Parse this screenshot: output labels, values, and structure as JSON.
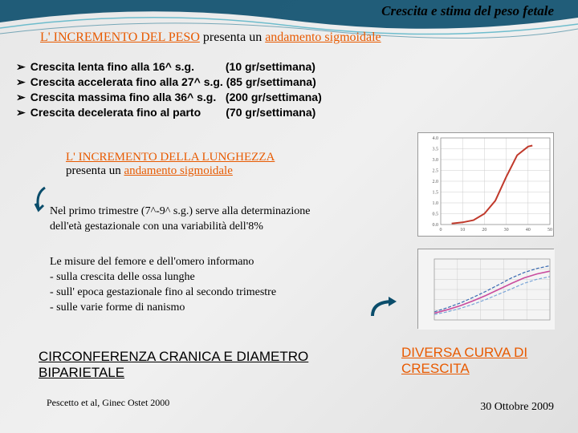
{
  "header": {
    "title": "Crescita e stima del peso fetale"
  },
  "subtitle": {
    "key": "L' INCREMENTO DEL PESO",
    "mid": " presenta un ",
    "orange": "andamento sigmoidale"
  },
  "bullets": [
    {
      "text": "Crescita lenta fino alla 16^ s.g.          (10 gr/settimana)"
    },
    {
      "text": "Crescita accelerata fino alla 27^ s.g. (85 gr/settimana)"
    },
    {
      "text": "Crescita massima fino alla 36^ s.g.   (200 gr/settimana)"
    },
    {
      "text": "Crescita decelerata fino al parto        (70 gr/settimana)"
    }
  ],
  "length_block": {
    "key": "L' INCREMENTO DELLA LUNGHEZZA",
    "line2a": "presenta un ",
    "line2b": "andamento sigmoidale"
  },
  "trimestre": {
    "line1": "Nel primo trimestre (7^-9^ s.g.) serve alla determinazione",
    "line2": "dell'età gestazionale con una variabilità dell'8%"
  },
  "misure": {
    "l1": "Le misure del femore e dell'omero informano",
    "l2": " - sulla crescita delle ossa lunghe",
    "l3": " - sull' epoca gestazionale  fino al secondo trimestre",
    "l4": " - sulle varie forme di nanismo"
  },
  "circ": {
    "l1": "CIRCONFERENZA CRANICA E DIAMETRO",
    "l2": "BIPARIETALE"
  },
  "ref": "Pescetto et al, Ginec Ostet 2000",
  "diversa": {
    "l1": "DIVERSA CURVA DI",
    "l2": "CRESCITA"
  },
  "date": "30 Ottobre 2009",
  "chart1": {
    "type": "line-sigmoid",
    "xlim": [
      0,
      50
    ],
    "ylim": [
      0,
      4
    ],
    "xtickstep": 10,
    "ytickstep": 0.5,
    "curve_color": "#c0392b",
    "curve_width": 2,
    "grid_color": "#cccccc",
    "bg": "#ffffff",
    "points_x": [
      5,
      10,
      15,
      20,
      25,
      30,
      35,
      40,
      42
    ],
    "points_y": [
      0.05,
      0.1,
      0.2,
      0.5,
      1.1,
      2.2,
      3.2,
      3.6,
      3.65
    ]
  },
  "chart2": {
    "type": "line-multi",
    "xlim": [
      15,
      40
    ],
    "ylim": [
      0,
      90
    ],
    "grid_color": "#cccccc",
    "bg": "#f4f4f4",
    "title_fontsize": 7,
    "series": [
      {
        "color": "#396ab1",
        "width": 1.2,
        "dash": "4 2",
        "y": [
          12,
          18,
          25,
          33,
          42,
          52,
          62,
          70,
          76,
          80
        ]
      },
      {
        "color": "#c94c9e",
        "width": 1.6,
        "dash": "none",
        "y": [
          10,
          15,
          21,
          28,
          36,
          45,
          54,
          62,
          68,
          72
        ]
      },
      {
        "color": "#7aa5d8",
        "width": 1.2,
        "dash": "4 2",
        "y": [
          8,
          12,
          17,
          23,
          30,
          38,
          46,
          54,
          60,
          64
        ]
      }
    ],
    "x": [
      15,
      17.8,
      20.6,
      23.3,
      26.1,
      28.9,
      31.7,
      34.4,
      37.2,
      40
    ]
  },
  "colors": {
    "accent": "#e85a00",
    "teal_dark": "#0a4d6b",
    "teal_light": "#4db0c4"
  }
}
